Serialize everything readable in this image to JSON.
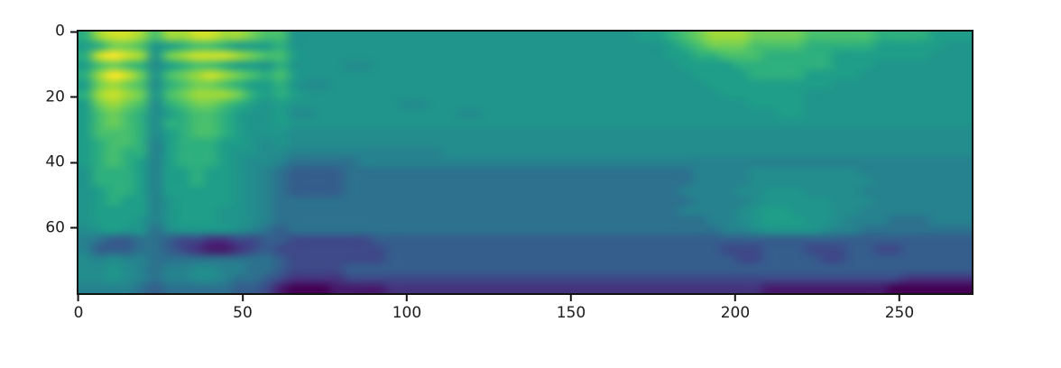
{
  "figure": {
    "background": "#ffffff",
    "title": ""
  },
  "chart_data": {
    "type": "heatmap",
    "title": "",
    "xlabel": "",
    "ylabel": "",
    "x_range": [
      0,
      272
    ],
    "y_range": [
      0,
      80
    ],
    "y_inverted": true,
    "x_ticks": [
      0,
      50,
      100,
      150,
      200,
      250
    ],
    "y_ticks": [
      0,
      20,
      40,
      60
    ],
    "grid_on": false,
    "legend": "none",
    "colormap": "viridis",
    "colormap_stops": [
      "#440154",
      "#482878",
      "#3e4a89",
      "#31688e",
      "#26828e",
      "#21918c",
      "#1f9e89",
      "#35b779",
      "#6ece58",
      "#b4de2c",
      "#fde725"
    ],
    "axis_color": "#131313",
    "tick_label_color": "#1c1c1c",
    "grid_encoding": "Each row is a 64-char hex string (0-f). value/15 maps through viridis colormap. Rows top-to-bottom cover y 0-80; cols left-to-right cover x 0-272.",
    "grid_cols": 64,
    "grid_rows": 27,
    "grid": [
      "adeedbddeeddcbb888888888888888888888888899abcdddccccbbbbbaaaa999",
      "9accb89abba999a8888888888888888888888888889abcccbbbbaaaaa9999988",
      "aefed8cdeeedcbb98888888888888888888888888899aabbbaaaaa9999999888",
      "9bcba79abba998a88887788888888888888888888889999aaaaaaa9998888888",
      "adfec8bcdedcbab988888888888888888888888888889999aaaa999988888888",
      "9cdcb7abccba99a8778888888888888888888888888889999999998888888888",
      "adedc8bcdddca9a9888888888888888888888888888888999999888888888888",
      "9cdcb7abccba9898888888877888888888888888888888889999888888888888",
      "9bcba79abba98897788888888887788888888888888888888899888888888888",
      "9bcba7aabba98898888888888888888888888888888888888888888888888888",
      "9bbba79abba98887777777777777777777777777777777777777777777777777",
      "9abba69aaa99878777777777777777777777777777777777777777777777777",
      "9abaa69aaa98877666666666667777777777777777777777777777777777777",
      "9aba969aaa987765555566666666666666666666666666666666666666666666",
      "8aaa9699a998765444455555555555555555555555556666777777776666666666",
      "8aaa9699a998765444455555555555555555555555556666777777777666666666",
      "89aa9699999876544445555555555555555555555556666778887777666666666",
      "89a996899998765555555555555555555555555555556666788888777666666666",
      "89999689998876555555555555555555555555555556666789988877666666666",
      "89998689998876555555555555555555555555555555566789998876665556666",
      "78988578888765455555555555555555555555555555556678888766555555555",
      "654455433223344333333444444444444444444444444444444444444444444",
      "644455432112343333333344444444444444444444444433344433344334444444",
      "767665555555554333333344444444444444444444444443344443344444444444",
      "778765667766554333344444444444444444444444444444444444444444444",
      "778765667765543222233333333333333333333333333333333333333332222",
      "666654555554431000111122222222222222222222222222211111111100000"
    ]
  }
}
